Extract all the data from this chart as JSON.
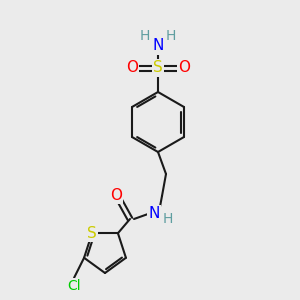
{
  "bg_color": "#ebebeb",
  "bond_color": "#1a1a1a",
  "atom_colors": {
    "S_sulfonamide": "#cccc00",
    "S_thiophene": "#cccc00",
    "O": "#ff0000",
    "N": "#0000ff",
    "Cl": "#00cc00",
    "H": "#5f9ea0",
    "C": "#1a1a1a"
  }
}
